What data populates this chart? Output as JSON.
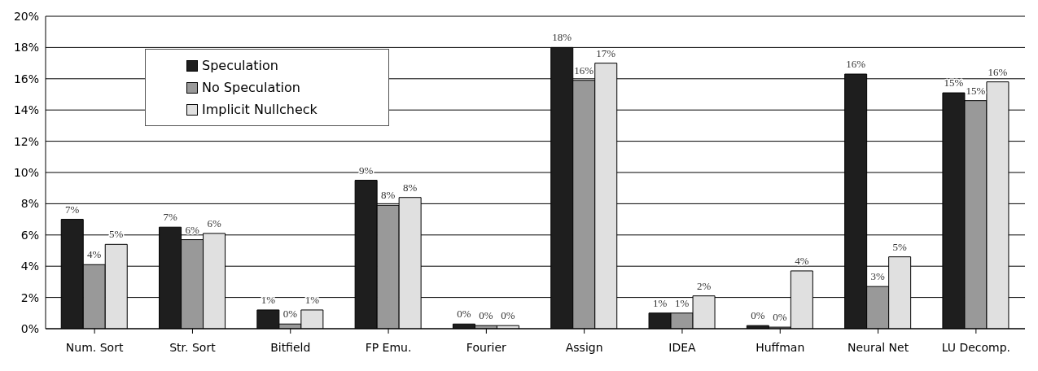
{
  "chart_data": {
    "type": "bar",
    "categories": [
      "Num. Sort",
      "Str. Sort",
      "Bitfield",
      "FP Emu.",
      "Fourier",
      "Assign",
      "IDEA",
      "Huffman",
      "Neural Net",
      "LU Decomp."
    ],
    "series": [
      {
        "name": "Speculation",
        "color": "#1e1e1e",
        "values": [
          7.0,
          6.5,
          1.2,
          9.5,
          0.3,
          18.0,
          1.0,
          0.2,
          16.3,
          15.1
        ],
        "value_labels": [
          "7%",
          "7%",
          "1%",
          "9%",
          "0%",
          "18%",
          "1%",
          "0%",
          "16%",
          "15%"
        ]
      },
      {
        "name": "No Speculation",
        "color": "#999999",
        "values": [
          4.1,
          5.7,
          0.3,
          7.9,
          0.2,
          15.9,
          1.0,
          0.1,
          2.7,
          14.6
        ],
        "value_labels": [
          "4%",
          "6%",
          "0%",
          "8%",
          "0%",
          "16%",
          "1%",
          "0%",
          "3%",
          "15%"
        ]
      },
      {
        "name": "Implicit Nullcheck",
        "color": "#e0e0e0",
        "values": [
          5.4,
          6.1,
          1.2,
          8.4,
          0.2,
          17.0,
          2.1,
          3.7,
          4.6,
          15.8
        ],
        "value_labels": [
          "5%",
          "6%",
          "1%",
          "8%",
          "0%",
          "17%",
          "2%",
          "4%",
          "5%",
          "16%"
        ]
      }
    ],
    "ylim": [
      0,
      20
    ],
    "yticks": [
      {
        "value": 0,
        "label": "0%"
      },
      {
        "value": 2,
        "label": "2%"
      },
      {
        "value": 4,
        "label": "4%"
      },
      {
        "value": 6,
        "label": "6%"
      },
      {
        "value": 8,
        "label": "8%"
      },
      {
        "value": 10,
        "label": "10%"
      },
      {
        "value": 12,
        "label": "12%"
      },
      {
        "value": 14,
        "label": "14%"
      },
      {
        "value": 16,
        "label": "16%"
      },
      {
        "value": 18,
        "label": "18%"
      },
      {
        "value": 20,
        "label": "20%"
      }
    ],
    "grid": "y",
    "legend": "top left"
  }
}
